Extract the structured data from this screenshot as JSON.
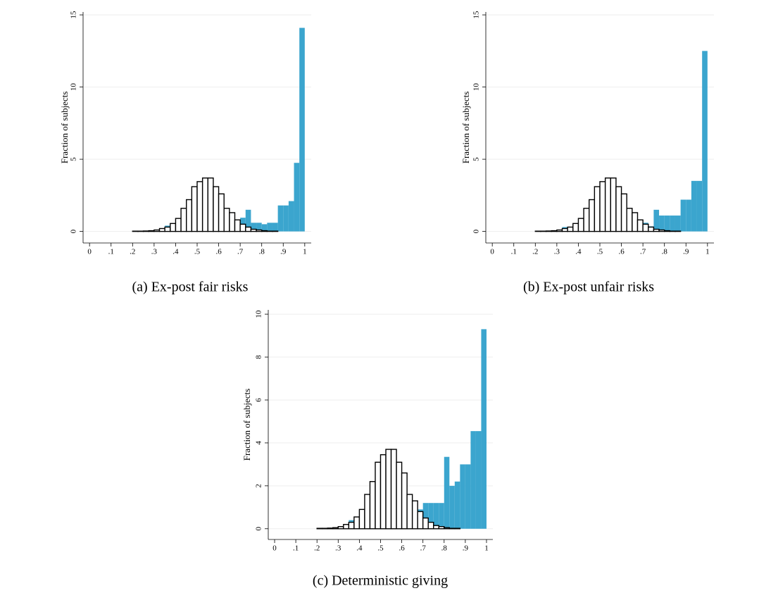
{
  "chart_data": [
    {
      "type": "histogram",
      "caption": "(a) Ex-post fair risks",
      "y_label": "Fraction of subjects",
      "bins": [
        0,
        0.025,
        0.05,
        0.075,
        0.1,
        0.125,
        0.15,
        0.175,
        0.2,
        0.225,
        0.25,
        0.275,
        0.3,
        0.325,
        0.35,
        0.375,
        0.4,
        0.425,
        0.45,
        0.475,
        0.5,
        0.525,
        0.55,
        0.575,
        0.6,
        0.625,
        0.65,
        0.675,
        0.7,
        0.725,
        0.75,
        0.775,
        0.8,
        0.825,
        0.85,
        0.875,
        0.9,
        0.925,
        0.95,
        0.975,
        1
      ],
      "series": [
        {
          "color": "#3ba5ce",
          "values": [
            0,
            0,
            0,
            0,
            0,
            0,
            0,
            0,
            0,
            0,
            0,
            0,
            0,
            0.1,
            0.4,
            0.35,
            0,
            0.1,
            0,
            0,
            0,
            0.55,
            0.15,
            0.15,
            0,
            0,
            0.75,
            0.25,
            0.95,
            1.5,
            0.6,
            0.6,
            0.5,
            0.6,
            0.6,
            1.8,
            1.8,
            2.1,
            4.75,
            14.1
          ]
        },
        {
          "color": "#ffffff",
          "edgecolor": "#000000",
          "values": [
            0,
            0,
            0,
            0,
            0,
            0,
            0,
            0,
            0.02,
            0.02,
            0.03,
            0.05,
            0.1,
            0.2,
            0.3,
            0.55,
            0.9,
            1.6,
            2.2,
            3.1,
            3.45,
            3.7,
            3.7,
            3.1,
            2.6,
            1.6,
            1.3,
            0.8,
            0.5,
            0.3,
            0.15,
            0.1,
            0.05,
            0.02,
            0.02,
            0,
            0,
            0,
            0,
            0
          ]
        }
      ],
      "xlim": [
        -0.03,
        1.03
      ],
      "ylim": [
        -0.8,
        15.2
      ],
      "xticks": [
        0,
        {
          "value": 0.1,
          "label": ".1"
        },
        {
          "value": 0.2,
          "label": ".2"
        },
        {
          "value": 0.3,
          "label": ".3"
        },
        {
          "value": 0.4,
          "label": ".4"
        },
        {
          "value": 0.5,
          "label": ".5"
        },
        {
          "value": 0.6,
          "label": ".6"
        },
        {
          "value": 0.7,
          "label": ".7"
        },
        {
          "value": 0.8,
          "label": ".8"
        },
        {
          "value": 0.9,
          "label": ".9"
        },
        1
      ],
      "yticks": [
        0,
        5,
        10,
        15
      ],
      "grid": true
    },
    {
      "type": "histogram",
      "caption": "(b) Ex-post unfair risks",
      "y_label": "Fraction of subjects",
      "bins": [
        0,
        0.025,
        0.05,
        0.075,
        0.1,
        0.125,
        0.15,
        0.175,
        0.2,
        0.225,
        0.25,
        0.275,
        0.3,
        0.325,
        0.35,
        0.375,
        0.4,
        0.425,
        0.45,
        0.475,
        0.5,
        0.525,
        0.55,
        0.575,
        0.6,
        0.625,
        0.65,
        0.675,
        0.7,
        0.725,
        0.75,
        0.775,
        0.8,
        0.825,
        0.85,
        0.875,
        0.9,
        0.925,
        0.95,
        0.975,
        1
      ],
      "series": [
        {
          "color": "#3ba5ce",
          "values": [
            0,
            0,
            0,
            0,
            0,
            0,
            0,
            0,
            0,
            0,
            0,
            0,
            0,
            0.3,
            0.2,
            0,
            0,
            0,
            0.1,
            0.15,
            0,
            0.75,
            0.35,
            0.75,
            1.65,
            0.95,
            0.75,
            0.8,
            0.6,
            0.35,
            1.5,
            1.1,
            1.1,
            1.1,
            1.1,
            2.2,
            2.2,
            3.5,
            3.5,
            12.5
          ]
        },
        {
          "color": "#ffffff",
          "edgecolor": "#000000",
          "values": [
            0,
            0,
            0,
            0,
            0,
            0,
            0,
            0,
            0.02,
            0.02,
            0.03,
            0.05,
            0.1,
            0.2,
            0.3,
            0.55,
            0.9,
            1.6,
            2.2,
            3.1,
            3.45,
            3.7,
            3.7,
            3.1,
            2.6,
            1.6,
            1.3,
            0.8,
            0.5,
            0.3,
            0.15,
            0.1,
            0.05,
            0.02,
            0.02,
            0,
            0,
            0,
            0,
            0
          ]
        }
      ],
      "xlim": [
        -0.03,
        1.03
      ],
      "ylim": [
        -0.8,
        15.2
      ],
      "xticks": [
        0,
        {
          "value": 0.1,
          "label": ".1"
        },
        {
          "value": 0.2,
          "label": ".2"
        },
        {
          "value": 0.3,
          "label": ".3"
        },
        {
          "value": 0.4,
          "label": ".4"
        },
        {
          "value": 0.5,
          "label": ".5"
        },
        {
          "value": 0.6,
          "label": ".6"
        },
        {
          "value": 0.7,
          "label": ".7"
        },
        {
          "value": 0.8,
          "label": ".8"
        },
        {
          "value": 0.9,
          "label": ".9"
        },
        1
      ],
      "yticks": [
        0,
        5,
        10,
        15
      ],
      "grid": true
    },
    {
      "type": "histogram",
      "caption": "(c) Deterministic giving",
      "y_label": "Fraction of subjects",
      "bins": [
        0,
        0.025,
        0.05,
        0.075,
        0.1,
        0.125,
        0.15,
        0.175,
        0.2,
        0.225,
        0.25,
        0.275,
        0.3,
        0.325,
        0.35,
        0.375,
        0.4,
        0.425,
        0.45,
        0.475,
        0.5,
        0.525,
        0.55,
        0.575,
        0.6,
        0.625,
        0.65,
        0.675,
        0.7,
        0.725,
        0.75,
        0.775,
        0.8,
        0.825,
        0.85,
        0.875,
        0.9,
        0.925,
        0.95,
        0.975,
        1
      ],
      "series": [
        {
          "color": "#3ba5ce",
          "values": [
            0,
            0,
            0,
            0,
            0,
            0,
            0,
            0,
            0,
            0,
            0,
            0,
            0,
            0,
            0.4,
            0,
            0,
            0.2,
            0.2,
            0.2,
            0,
            0,
            0.2,
            0.8,
            0.8,
            0.9,
            1.0,
            0.9,
            1.2,
            1.2,
            1.2,
            1.2,
            3.35,
            2.0,
            2.2,
            3.0,
            3.0,
            4.55,
            4.55,
            9.3
          ]
        },
        {
          "color": "#ffffff",
          "edgecolor": "#000000",
          "values": [
            0,
            0,
            0,
            0,
            0,
            0,
            0,
            0,
            0.02,
            0.02,
            0.03,
            0.05,
            0.1,
            0.2,
            0.3,
            0.55,
            0.9,
            1.6,
            2.2,
            3.1,
            3.45,
            3.7,
            3.7,
            3.1,
            2.6,
            1.6,
            1.3,
            0.8,
            0.5,
            0.3,
            0.15,
            0.1,
            0.05,
            0.02,
            0.02,
            0,
            0,
            0,
            0,
            0
          ]
        }
      ],
      "xlim": [
        -0.03,
        1.03
      ],
      "ylim": [
        -0.5,
        10.2
      ],
      "xticks": [
        0,
        {
          "value": 0.1,
          "label": ".1"
        },
        {
          "value": 0.2,
          "label": ".2"
        },
        {
          "value": 0.3,
          "label": ".3"
        },
        {
          "value": 0.4,
          "label": ".4"
        },
        {
          "value": 0.5,
          "label": ".5"
        },
        {
          "value": 0.6,
          "label": ".6"
        },
        {
          "value": 0.7,
          "label": ".7"
        },
        {
          "value": 0.8,
          "label": ".8"
        },
        {
          "value": 0.9,
          "label": ".9"
        },
        1
      ],
      "yticks": [
        0,
        2,
        4,
        6,
        8,
        10
      ],
      "grid": true
    }
  ]
}
